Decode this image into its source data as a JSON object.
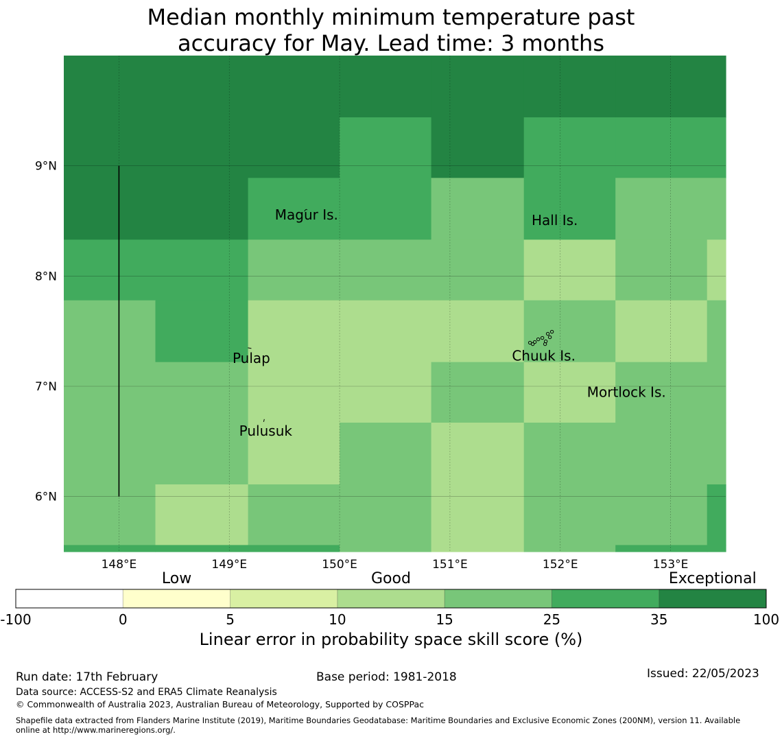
{
  "title": {
    "line1": "Median monthly minimum temperature past",
    "line2": "accuracy for May. Lead time: 3 months"
  },
  "map": {
    "lon_range": [
      147.5,
      153.5
    ],
    "lat_range": [
      5.5,
      10.0
    ],
    "lon_ticks": [
      {
        "value": 148,
        "label": "148°E"
      },
      {
        "value": 149,
        "label": "149°E"
      },
      {
        "value": 150,
        "label": "150°E"
      },
      {
        "value": 151,
        "label": "151°E"
      },
      {
        "value": 152,
        "label": "152°E"
      },
      {
        "value": 153,
        "label": "153°E"
      }
    ],
    "lat_ticks": [
      {
        "value": 9,
        "label": "9°N"
      },
      {
        "value": 8,
        "label": "8°N"
      },
      {
        "value": 7,
        "label": "7°N"
      },
      {
        "value": 6,
        "label": "6°N"
      }
    ],
    "grid_lon_edges": [
      147.5,
      148.33,
      149.17,
      150.0,
      150.83,
      151.67,
      152.5,
      153.33,
      153.5
    ],
    "grid_lat_edges": [
      10.0,
      9.44,
      8.89,
      8.33,
      7.78,
      7.22,
      6.67,
      6.11,
      5.56,
      5.5
    ],
    "skill_classes": [
      [
        "exceptional",
        "exceptional",
        "exceptional",
        "exceptional",
        "exceptional",
        "exceptional",
        "exceptional",
        "exceptional"
      ],
      [
        "exceptional",
        "exceptional",
        "exceptional",
        "high",
        "exceptional",
        "high",
        "high",
        "high"
      ],
      [
        "exceptional",
        "exceptional",
        "high",
        "high",
        "good",
        "high",
        "good",
        "good"
      ],
      [
        "high",
        "high",
        "good",
        "good",
        "good",
        "fair",
        "good",
        "fair"
      ],
      [
        "good",
        "high",
        "fair",
        "fair",
        "fair",
        "good",
        "fair",
        "good"
      ],
      [
        "good",
        "good",
        "fair",
        "fair",
        "good",
        "fair",
        "good",
        "good"
      ],
      [
        "good",
        "good",
        "fair",
        "good",
        "fair",
        "good",
        "good",
        "good"
      ],
      [
        "good",
        "fair",
        "good",
        "good",
        "fair",
        "good",
        "good",
        "high"
      ],
      [
        "high",
        "high",
        "high",
        "good",
        "fair",
        "good",
        "high",
        "high"
      ]
    ],
    "places": [
      {
        "name": "Magur Is.",
        "lon": 149.7,
        "lat": 8.55
      },
      {
        "name": "Hall Is.",
        "lon": 151.95,
        "lat": 8.5
      },
      {
        "name": "Pulap",
        "lon": 149.2,
        "lat": 7.25
      },
      {
        "name": "Chuuk Is.",
        "lon": 151.85,
        "lat": 7.27
      },
      {
        "name": "Mortlock Is.",
        "lon": 152.6,
        "lat": 6.94
      },
      {
        "name": "Pulusuk",
        "lon": 149.33,
        "lat": 6.59
      }
    ]
  },
  "colorbar": {
    "categories": [
      {
        "label": "Low",
        "at": 1.5
      },
      {
        "label": "Good",
        "at": 3.5
      },
      {
        "label": "Exceptional",
        "at": 6.5
      }
    ],
    "boundaries": [
      "-100",
      "0",
      "5",
      "10",
      "15",
      "25",
      "35",
      "100"
    ],
    "colors": [
      "#ffffff",
      "#ffffcc",
      "#d9f0a3",
      "#addd8e",
      "#78c679",
      "#41ab5d",
      "#238443"
    ],
    "label": "Linear error in probability space skill score (%)"
  },
  "class_colors": {
    "fair": "#addd8e",
    "good": "#78c679",
    "high": "#41ab5d",
    "exceptional": "#238443"
  },
  "footer": {
    "run_date": "Run date: 17th February",
    "base_period": "Base period: 1981-2018",
    "issued": "Issued: 22/05/2023",
    "data_source": "Data source: ACCESS-S2 and ERA5 Climate Reanalysis",
    "copyright": "© Commonwealth of Australia 2023, Australian Bureau of Meteorology, Supported by COSPPac",
    "shapefile_line1": "Shapefile data extracted from Flanders Marine Institute (2019), Maritime Boundaries Geodatabase: Maritime Boundaries and Exclusive Economic Zones (200NM), version 11. Available",
    "shapefile_line2": "online at http://www.marineregions.org/."
  }
}
